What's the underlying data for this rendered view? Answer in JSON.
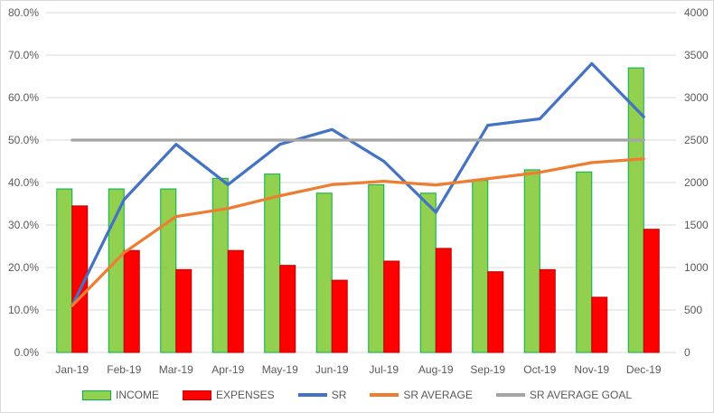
{
  "chart_data": {
    "type": "combo-bar-line",
    "title": "",
    "categories": [
      "Jan-19",
      "Feb-19",
      "Mar-19",
      "Apr-19",
      "May-19",
      "Jun-19",
      "Jul-19",
      "Aug-19",
      "Sep-19",
      "Oct-19",
      "Nov-19",
      "Dec-19"
    ],
    "series": [
      {
        "name": "INCOME",
        "type": "bar",
        "axis": "left",
        "unit": "percent",
        "fill": "#92D050",
        "border": "#00B050",
        "values": [
          38.5,
          38.5,
          38.5,
          41,
          42,
          37.5,
          39.5,
          37.5,
          40.5,
          43,
          42.5,
          67
        ]
      },
      {
        "name": "EXPENSES",
        "type": "bar",
        "axis": "left",
        "unit": "percent",
        "fill": "#FF0000",
        "border": "#C00000",
        "values": [
          34.5,
          24,
          19.5,
          24,
          20.5,
          17,
          21.5,
          24.5,
          19,
          19.5,
          13,
          29
        ]
      },
      {
        "name": "SR",
        "type": "line",
        "axis": "right",
        "color": "#4472C4",
        "values": [
          550,
          1800,
          2450,
          1975,
          2450,
          2625,
          2250,
          1650,
          2675,
          2750,
          3400,
          2775
        ]
      },
      {
        "name": "SR AVERAGE",
        "type": "line",
        "axis": "right",
        "color": "#ED7D31",
        "values": [
          550,
          1175,
          1600,
          1695,
          1845,
          1975,
          2015,
          1970,
          2045,
          2120,
          2235,
          2280
        ]
      },
      {
        "name": "SR AVERAGE GOAL",
        "type": "line",
        "axis": "right",
        "color": "#A5A5A5",
        "values": [
          2500,
          2500,
          2500,
          2500,
          2500,
          2500,
          2500,
          2500,
          2500,
          2500,
          2500,
          2500
        ]
      }
    ],
    "left_axis": {
      "min": 0,
      "max": 80,
      "step": 10,
      "labels": [
        "0.0%",
        "10.0%",
        "20.0%",
        "30.0%",
        "40.0%",
        "50.0%",
        "60.0%",
        "70.0%",
        "80.0%"
      ]
    },
    "right_axis": {
      "min": 0,
      "max": 4000,
      "step": 500,
      "labels": [
        "0",
        "500",
        "1000",
        "1500",
        "2000",
        "2500",
        "3000",
        "3500",
        "4000"
      ]
    },
    "grid": true,
    "legend_position": "bottom"
  },
  "style": {
    "gridline_color": "#D9D9D9",
    "axis_text_color": "#595959",
    "background": "#FFFFFF",
    "chart_border": "#D9D9D9"
  }
}
